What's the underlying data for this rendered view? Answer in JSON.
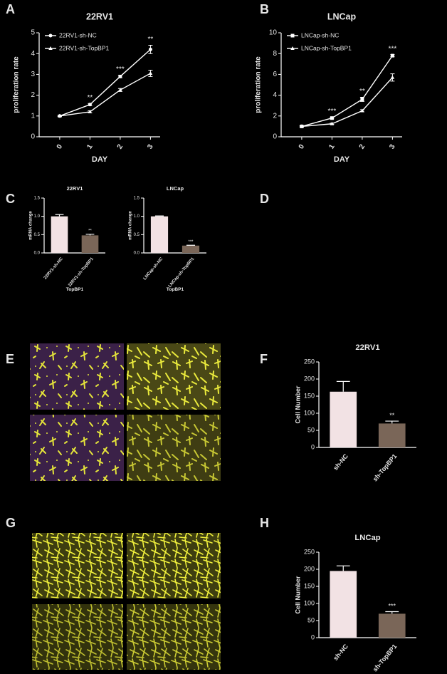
{
  "panel_labels": [
    "A",
    "B",
    "C",
    "D",
    "E",
    "F",
    "G",
    "H"
  ],
  "chart_data": [
    {
      "type": "line",
      "title": "22RV1",
      "x_label": "DAY",
      "y_label": "proliferation rate",
      "categories": [
        "0",
        "1",
        "2",
        "3"
      ],
      "ylim": [
        0,
        5
      ],
      "yticks": [
        0,
        1,
        2,
        3,
        4,
        5
      ],
      "series": [
        {
          "name": "22RV1-sh-NC",
          "color": "#ffffff",
          "marker": "circle",
          "values": [
            1,
            1.55,
            2.9,
            4.2
          ],
          "errors": [
            0.03,
            0.05,
            0.06,
            0.2
          ]
        },
        {
          "name": "22RV1-sh-TopBP1",
          "color": "#ffffff",
          "marker": "triangle",
          "values": [
            1,
            1.2,
            2.25,
            3.05
          ],
          "errors": [
            0.03,
            0.05,
            0.07,
            0.15
          ]
        }
      ],
      "annotations": [
        null,
        "**",
        "***",
        "**"
      ]
    },
    {
      "type": "line",
      "title": "LNCap",
      "x_label": "DAY",
      "y_label": "proliferation rate",
      "categories": [
        "0",
        "1",
        "2",
        "3"
      ],
      "ylim": [
        0,
        10
      ],
      "yticks": [
        0,
        2,
        4,
        6,
        8,
        10
      ],
      "series": [
        {
          "name": "LNCap-sh-NC",
          "color": "#ffffff",
          "marker": "square",
          "values": [
            1,
            1.8,
            3.6,
            7.8
          ],
          "errors": [
            0.05,
            0.08,
            0.2,
            0.1
          ]
        },
        {
          "name": "LNCap-sh-TopBP1",
          "color": "#ffffff",
          "marker": "triangle",
          "values": [
            1,
            1.25,
            2.5,
            5.7
          ],
          "errors": [
            0.05,
            0.06,
            0.1,
            0.35
          ]
        }
      ],
      "annotations": [
        null,
        "***",
        "**",
        "***"
      ]
    },
    {
      "type": "bar",
      "title": "22RV1",
      "x_label": "TopBP1",
      "y_label": "mRNA change",
      "categories": [
        "22RV1-sh-NC",
        "22RV1-sh-TopBP1"
      ],
      "values": [
        1.0,
        0.48
      ],
      "errors": [
        0.05,
        0.03
      ],
      "colors": [
        "#f2e2e4",
        "#7a6658"
      ],
      "ylim": [
        0,
        1.5
      ],
      "yticks": [
        {
          "value": 0,
          "label": "0.0"
        },
        {
          "value": 0.5,
          "label": "0.5"
        },
        {
          "value": 1,
          "label": "1.0"
        },
        {
          "value": 1.5,
          "label": "1.5"
        }
      ],
      "annotations": [
        null,
        "**"
      ]
    },
    {
      "type": "bar",
      "title": "LNCap",
      "x_label": "TopBP1",
      "y_label": "mRNA change",
      "categories": [
        "LNCap-sh-NC",
        "LNCap-sh-TopBP1"
      ],
      "values": [
        1.0,
        0.2
      ],
      "errors": [
        0.01,
        0.01
      ],
      "colors": [
        "#f2e2e4",
        "#7a6658"
      ],
      "ylim": [
        0,
        1.5
      ],
      "yticks": [
        {
          "value": 0,
          "label": "0.0"
        },
        {
          "value": 0.5,
          "label": "0.5"
        },
        {
          "value": 1,
          "label": "1.0"
        },
        {
          "value": 1.5,
          "label": "1.5"
        }
      ],
      "annotations": [
        null,
        "***"
      ]
    },
    {
      "type": "bar",
      "title": "22RV1",
      "y_label": "Cell Number",
      "categories": [
        "sh-NC",
        "sh-TopBP1"
      ],
      "values": [
        163,
        70
      ],
      "errors": [
        30,
        7
      ],
      "colors": [
        "#f2e2e4",
        "#7a6658"
      ],
      "ylim": [
        0,
        250
      ],
      "yticks": [
        0,
        50,
        100,
        150,
        200,
        250
      ],
      "annotations": [
        null,
        "**"
      ]
    },
    {
      "type": "bar",
      "title": "LNCap",
      "y_label": "Cell Number",
      "categories": [
        "sh-NC",
        "sh-TopBP1"
      ],
      "values": [
        195,
        70
      ],
      "errors": [
        15,
        6
      ],
      "colors": [
        "#f2e2e4",
        "#7a6658"
      ],
      "ylim": [
        0,
        250
      ],
      "yticks": [
        0,
        50,
        100,
        150,
        200,
        250
      ],
      "annotations": [
        null,
        "***"
      ]
    }
  ]
}
